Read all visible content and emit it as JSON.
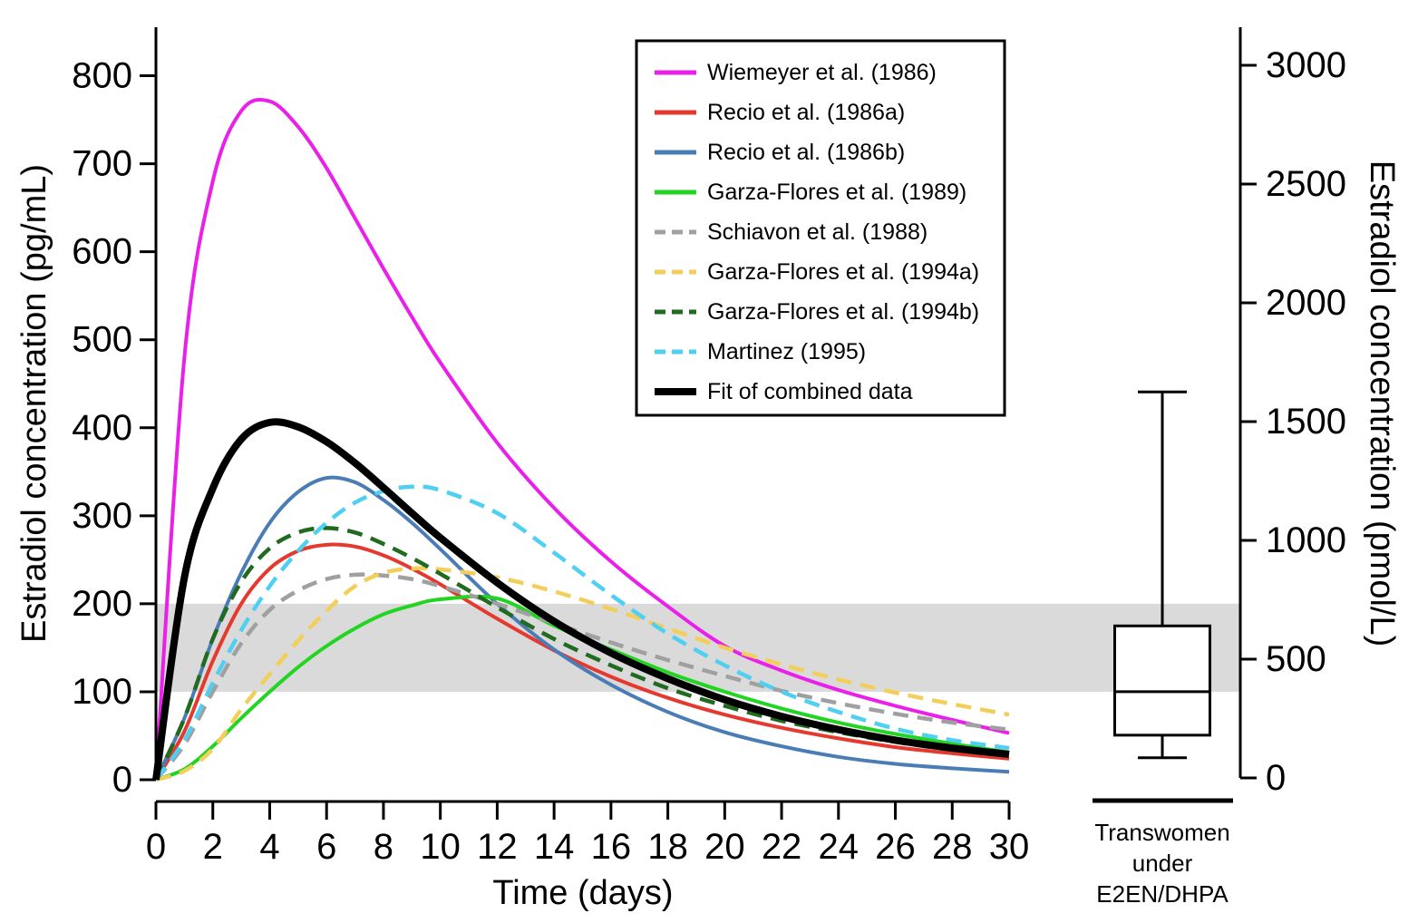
{
  "figure": {
    "left_axis": {
      "title": "Estradiol concentration (pg/mL)",
      "unit": "pg/mL",
      "ticks": [
        0,
        100,
        200,
        300,
        400,
        500,
        600,
        700,
        800
      ]
    },
    "bottom_axis": {
      "title": "Time (days)",
      "ticks": [
        0,
        2,
        4,
        6,
        8,
        10,
        12,
        14,
        16,
        18,
        20,
        22,
        24,
        26,
        28,
        30
      ]
    },
    "right_axis": {
      "title": "Estradiol concentration (pmol/L)",
      "unit": "pmol/L",
      "ticks": [
        0,
        500,
        1000,
        1500,
        2000,
        2500,
        3000
      ]
    }
  },
  "chart_data": {
    "type": "line",
    "title": "",
    "xlabel": "Time (days)",
    "ylabel_left": "Estradiol concentration (pg/mL)",
    "ylabel_right": "Estradiol concentration (pmol/L)",
    "xlim": [
      0,
      30
    ],
    "ylim_left_pg_ml": [
      0,
      855
    ],
    "ylim_right_pmol_l": [
      0,
      3170
    ],
    "grid": false,
    "legend_position": "upper right inside plot",
    "reference_band": {
      "low_pg_ml": 100,
      "high_pg_ml": 200,
      "color": "#DADADA"
    },
    "x": [
      0,
      1,
      2,
      3,
      4,
      5,
      6,
      7,
      8,
      9,
      10,
      12,
      14,
      16,
      18,
      20,
      22,
      24,
      26,
      28,
      30
    ],
    "series": [
      {
        "name": "Wiemeyer et al. (1986)",
        "color": "#EA1FEA",
        "dash": false,
        "emphasis": false,
        "values": [
          0,
          480,
          680,
          760,
          771,
          742,
          695,
          638,
          581,
          526,
          474,
          383,
          309,
          248,
          197,
          152,
          124,
          102,
          84,
          68,
          53
        ]
      },
      {
        "name": "Recio et al. (1986a)",
        "color": "#E5392F",
        "dash": false,
        "emphasis": false,
        "values": [
          0,
          55,
          135,
          200,
          240,
          260,
          267,
          265,
          255,
          240,
          222,
          183,
          147,
          117,
          93,
          74,
          59,
          47,
          37,
          30,
          24
        ]
      },
      {
        "name": "Recio et al. (1986b)",
        "color": "#4A7CB5",
        "dash": false,
        "emphasis": false,
        "values": [
          0,
          70,
          160,
          235,
          292,
          327,
          343,
          338,
          318,
          292,
          262,
          200,
          148,
          108,
          77,
          54,
          38,
          26,
          18,
          13,
          9
        ]
      },
      {
        "name": "Garza-Flores et al. (1989)",
        "color": "#23D523",
        "dash": false,
        "emphasis": false,
        "values": [
          0,
          12,
          38,
          70,
          100,
          128,
          152,
          172,
          188,
          198,
          205,
          206,
          175,
          148,
          122,
          100,
          81,
          65,
          52,
          41,
          31
        ]
      },
      {
        "name": "Schiavon et al. (1988)",
        "color": "#A0A0A0",
        "dash": true,
        "emphasis": false,
        "values": [
          0,
          40,
          100,
          155,
          193,
          215,
          228,
          233,
          232,
          228,
          220,
          200,
          178,
          156,
          136,
          118,
          101,
          87,
          75,
          65,
          57
        ]
      },
      {
        "name": "Garza-Flores et al. (1994a)",
        "color": "#F2CF5B",
        "dash": true,
        "emphasis": false,
        "values": [
          0,
          10,
          35,
          80,
          120,
          158,
          192,
          220,
          235,
          240,
          239,
          230,
          214,
          194,
          172,
          150,
          131,
          114,
          99,
          86,
          74
        ]
      },
      {
        "name": "Garza-Flores et al. (1994b)",
        "color": "#206B20",
        "dash": true,
        "emphasis": false,
        "values": [
          0,
          70,
          160,
          225,
          263,
          281,
          286,
          281,
          268,
          252,
          234,
          196,
          160,
          130,
          104,
          84,
          67,
          54,
          43,
          34,
          27
        ]
      },
      {
        "name": "Martinez (1995)",
        "color": "#4FD0F2",
        "dash": true,
        "emphasis": false,
        "values": [
          0,
          45,
          110,
          170,
          220,
          260,
          292,
          315,
          328,
          333,
          329,
          303,
          258,
          210,
          166,
          130,
          100,
          77,
          58,
          45,
          36
        ]
      },
      {
        "name": "Fit of combined data",
        "color": "#000000",
        "dash": false,
        "emphasis": true,
        "values": [
          0,
          230,
          331,
          387,
          406,
          401,
          384,
          360,
          332,
          303,
          275,
          224,
          180,
          144,
          115,
          91,
          72,
          57,
          45,
          36,
          29
        ]
      }
    ],
    "boxplot": {
      "label_lines": [
        "Transwomen",
        "under",
        "E2EN/DHPA"
      ],
      "unit": "pmol/L",
      "min": 85,
      "q1": 180,
      "median": 363,
      "q3": 640,
      "max": 1625
    }
  }
}
